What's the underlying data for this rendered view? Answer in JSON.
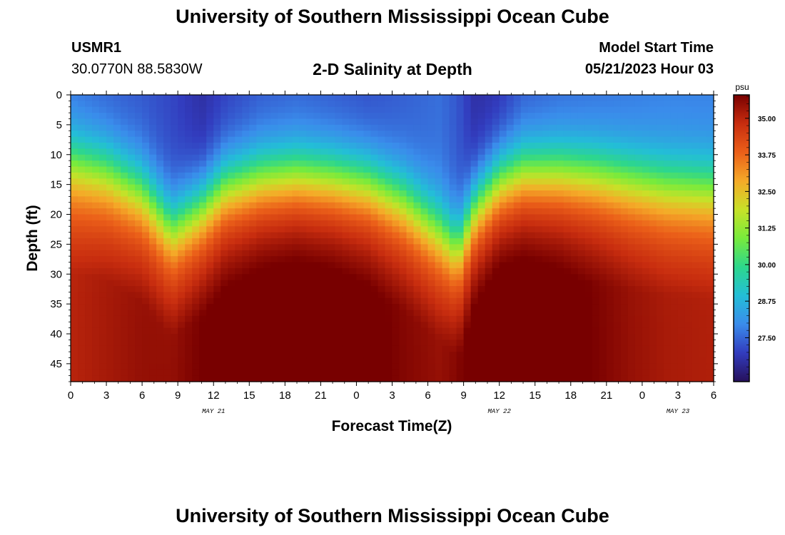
{
  "header": {
    "title": "University of Southern Mississippi Ocean Cube",
    "station_id": "USMR1",
    "coordinates": "30.0770N  88.5830W",
    "subtitle": "2-D Salinity at Depth",
    "model_start_label": "Model Start Time",
    "model_start_value": "05/21/2023 Hour 03"
  },
  "footer": {
    "title": "University of Southern Mississippi Ocean Cube"
  },
  "chart_data": {
    "type": "heatmap",
    "title": "2-D Salinity at Depth",
    "xlabel": "Forecast Time(Z)",
    "ylabel": "Depth (ft)",
    "x_ticks": [
      "0",
      "3",
      "6",
      "9",
      "12",
      "15",
      "18",
      "21",
      "0",
      "3",
      "6",
      "9",
      "12",
      "15",
      "18",
      "21",
      "0",
      "3",
      "6"
    ],
    "date_labels": [
      "MAY 21",
      "MAY 22",
      "MAY 23"
    ],
    "y_ticks": [
      "0",
      "5",
      "10",
      "15",
      "20",
      "25",
      "30",
      "35",
      "40",
      "45"
    ],
    "ylim": [
      0,
      48
    ],
    "xlim_hours": [
      0,
      54
    ],
    "colorbar": {
      "unit": "psu",
      "range": [
        26.0,
        35.8
      ],
      "ticks": [
        "35.00",
        "33.75",
        "32.50",
        "31.25",
        "30.00",
        "28.75",
        "27.50"
      ]
    },
    "columns": {
      "hours": [
        0,
        3,
        6,
        8.5,
        11,
        13,
        16,
        19,
        22,
        25,
        28,
        31,
        32.5,
        34,
        36,
        38,
        41,
        44,
        47,
        50,
        54
      ],
      "halocline_depth_ft": [
        10.5,
        12,
        15.5,
        21.5,
        18,
        14.5,
        13,
        12.5,
        13,
        14,
        17,
        22,
        25,
        18,
        13.5,
        12,
        12,
        12.5,
        13.5,
        14.5,
        15
      ],
      "bottom_salinity_psu": [
        34.6,
        34.8,
        35.0,
        35.0,
        35.3,
        35.5,
        35.7,
        35.8,
        35.7,
        35.5,
        35.2,
        35.0,
        35.2,
        35.6,
        35.8,
        35.8,
        35.6,
        35.3,
        35.0,
        34.8,
        34.7
      ],
      "surface_salinity_psu": [
        27.6,
        27.4,
        27.3,
        27.1,
        26.7,
        27.0,
        27.3,
        27.4,
        27.3,
        27.2,
        27.4,
        27.6,
        27.3,
        26.7,
        26.8,
        27.3,
        27.5,
        27.6,
        27.7,
        27.8,
        27.8
      ]
    }
  }
}
